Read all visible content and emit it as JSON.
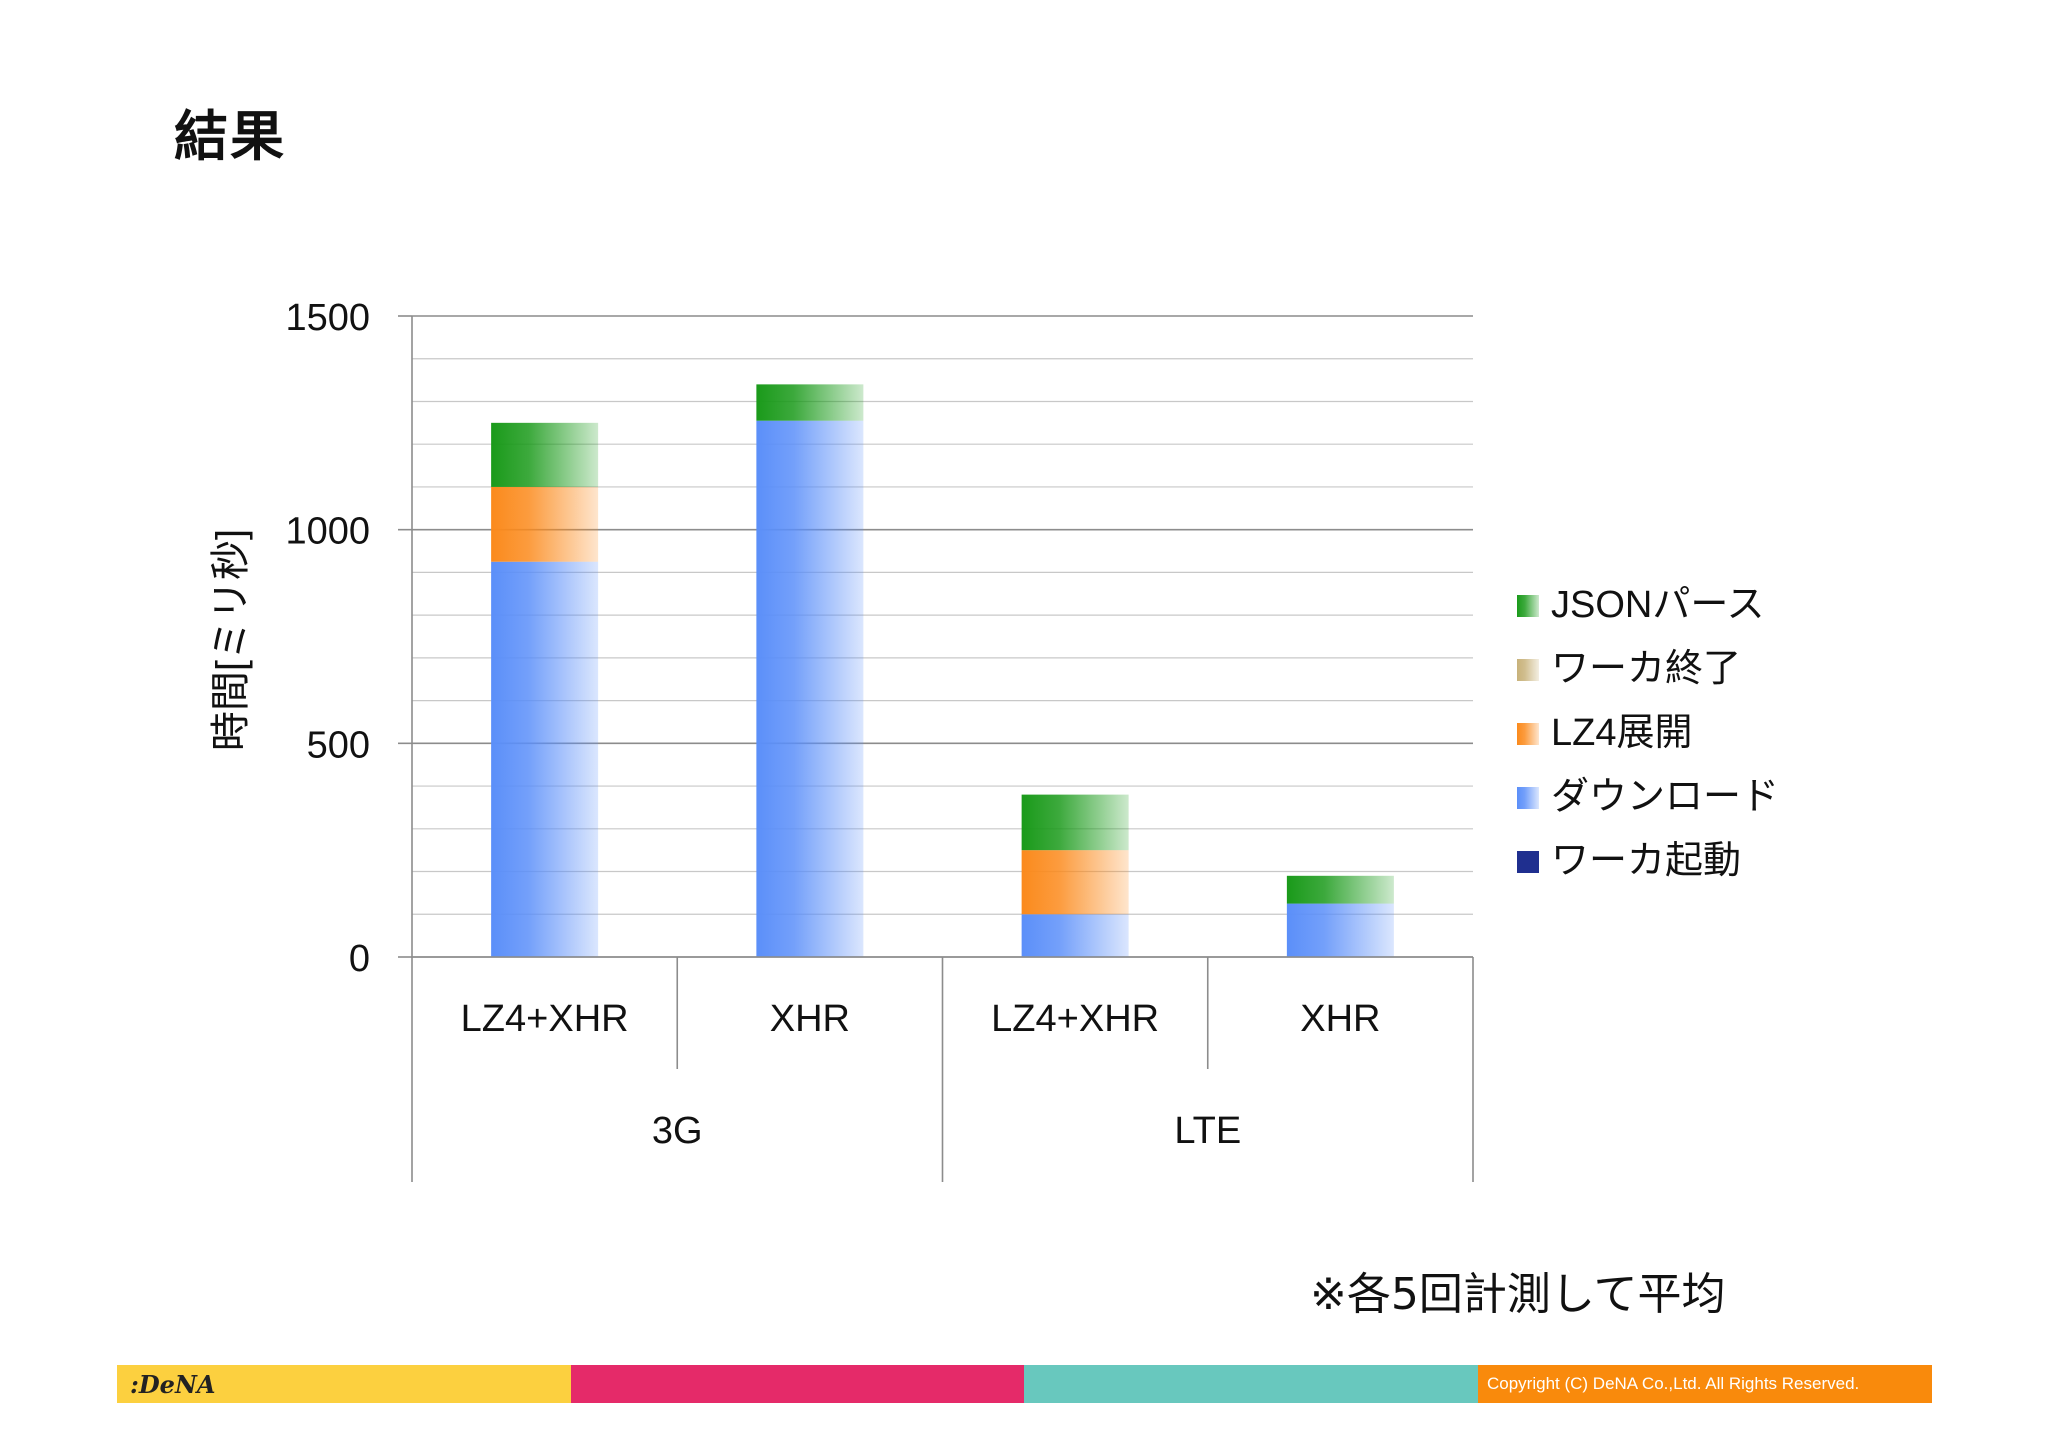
{
  "slide": {
    "title": "結果",
    "note": "※各5回計測して平均",
    "logo_text": ":DeNA",
    "copyright": "Copyright (C) DeNA Co.,Ltd. All Rights Reserved."
  },
  "colors": {
    "footer": [
      "#fcd03f",
      "#e52a69",
      "#68c8be",
      "#f98a0c"
    ]
  },
  "chart_data": {
    "type": "bar",
    "stacked": true,
    "ylabel": "時間[ミリ秒]",
    "ylim": [
      0,
      1500
    ],
    "yticks": [
      0,
      500,
      1000,
      1500
    ],
    "minor_step": 100,
    "groups": [
      {
        "label": "3G",
        "categories": [
          "LZ4+XHR",
          "XHR"
        ]
      },
      {
        "label": "LTE",
        "categories": [
          "LZ4+XHR",
          "XHR"
        ]
      }
    ],
    "categories": [
      "LZ4+XHR",
      "XHR",
      "LZ4+XHR",
      "XHR"
    ],
    "series": [
      {
        "name": "ワーカ起動",
        "color": "#1f2f8f",
        "values": [
          0,
          0,
          0,
          0
        ]
      },
      {
        "name": "ダウンロード",
        "color": "#5b8ff9",
        "values": [
          925,
          1255,
          100,
          125
        ]
      },
      {
        "name": "LZ4展開",
        "color": "#fb8a1c",
        "values": [
          175,
          0,
          150,
          0
        ]
      },
      {
        "name": "ワーカ終了",
        "color": "#c8b27a",
        "values": [
          0,
          0,
          0,
          0
        ]
      },
      {
        "name": "JSONパース",
        "color": "#1a9a1a",
        "values": [
          150,
          85,
          130,
          65
        ]
      }
    ],
    "legend_order": [
      "JSONパース",
      "ワーカ終了",
      "LZ4展開",
      "ダウンロード",
      "ワーカ起動"
    ],
    "legend": "right",
    "grid": true
  }
}
